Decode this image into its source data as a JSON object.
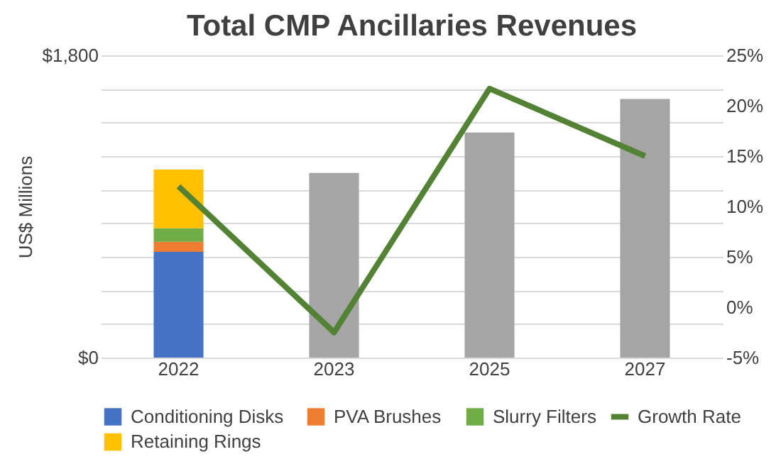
{
  "chart_data": {
    "type": "bar",
    "title": "Total CMP Ancillaries Revenues",
    "ylabel": "US$ Millions",
    "categories": [
      "2022",
      "2023",
      "2025",
      "2027"
    ],
    "stacked": true,
    "series": [
      {
        "name": "Conditioning Disks",
        "color": "#4472c4",
        "values": [
          630,
          null,
          null,
          null
        ]
      },
      {
        "name": "PVA Brushes",
        "color": "#ed7d31",
        "values": [
          60,
          null,
          null,
          null
        ]
      },
      {
        "name": "Slurry Filters",
        "color": "#70ad47",
        "values": [
          80,
          null,
          null,
          null
        ]
      },
      {
        "name": "Retaining Rings",
        "color": "#ffc000",
        "values": [
          350,
          null,
          null,
          null
        ]
      },
      {
        "color": "#a5a5a5",
        "values": [
          null,
          1100,
          1340,
          1540
        ]
      },
      {
        "name": "Growth Rate",
        "type": "line",
        "axis": "y2",
        "color": "#548235",
        "values": [
          12.0,
          -2.5,
          21.7,
          15.0
        ]
      }
    ],
    "ylim": [
      0,
      1800
    ],
    "yticks": [
      {
        "value": 0,
        "label": "$0"
      },
      {
        "value": 200,
        "label": null
      },
      {
        "value": 400,
        "label": null
      },
      {
        "value": 600,
        "label": null
      },
      {
        "value": 800,
        "label": null
      },
      {
        "value": 1000,
        "label": null
      },
      {
        "value": 1200,
        "label": null
      },
      {
        "value": 1400,
        "label": null
      },
      {
        "value": 1600,
        "label": null
      },
      {
        "value": 1800,
        "label": "$1,800"
      }
    ],
    "y2lim": [
      -5,
      25
    ],
    "y2ticks": [
      {
        "value": -5,
        "label": "-5%"
      },
      {
        "value": 0,
        "label": "0%"
      },
      {
        "value": 5,
        "label": "5%"
      },
      {
        "value": 10,
        "label": "10%"
      },
      {
        "value": 15,
        "label": "15%"
      },
      {
        "value": 20,
        "label": "20%"
      },
      {
        "value": 25,
        "label": "25%"
      }
    ],
    "grid": "y",
    "legend": "bottom",
    "marker": "none",
    "line_style": "solid"
  }
}
